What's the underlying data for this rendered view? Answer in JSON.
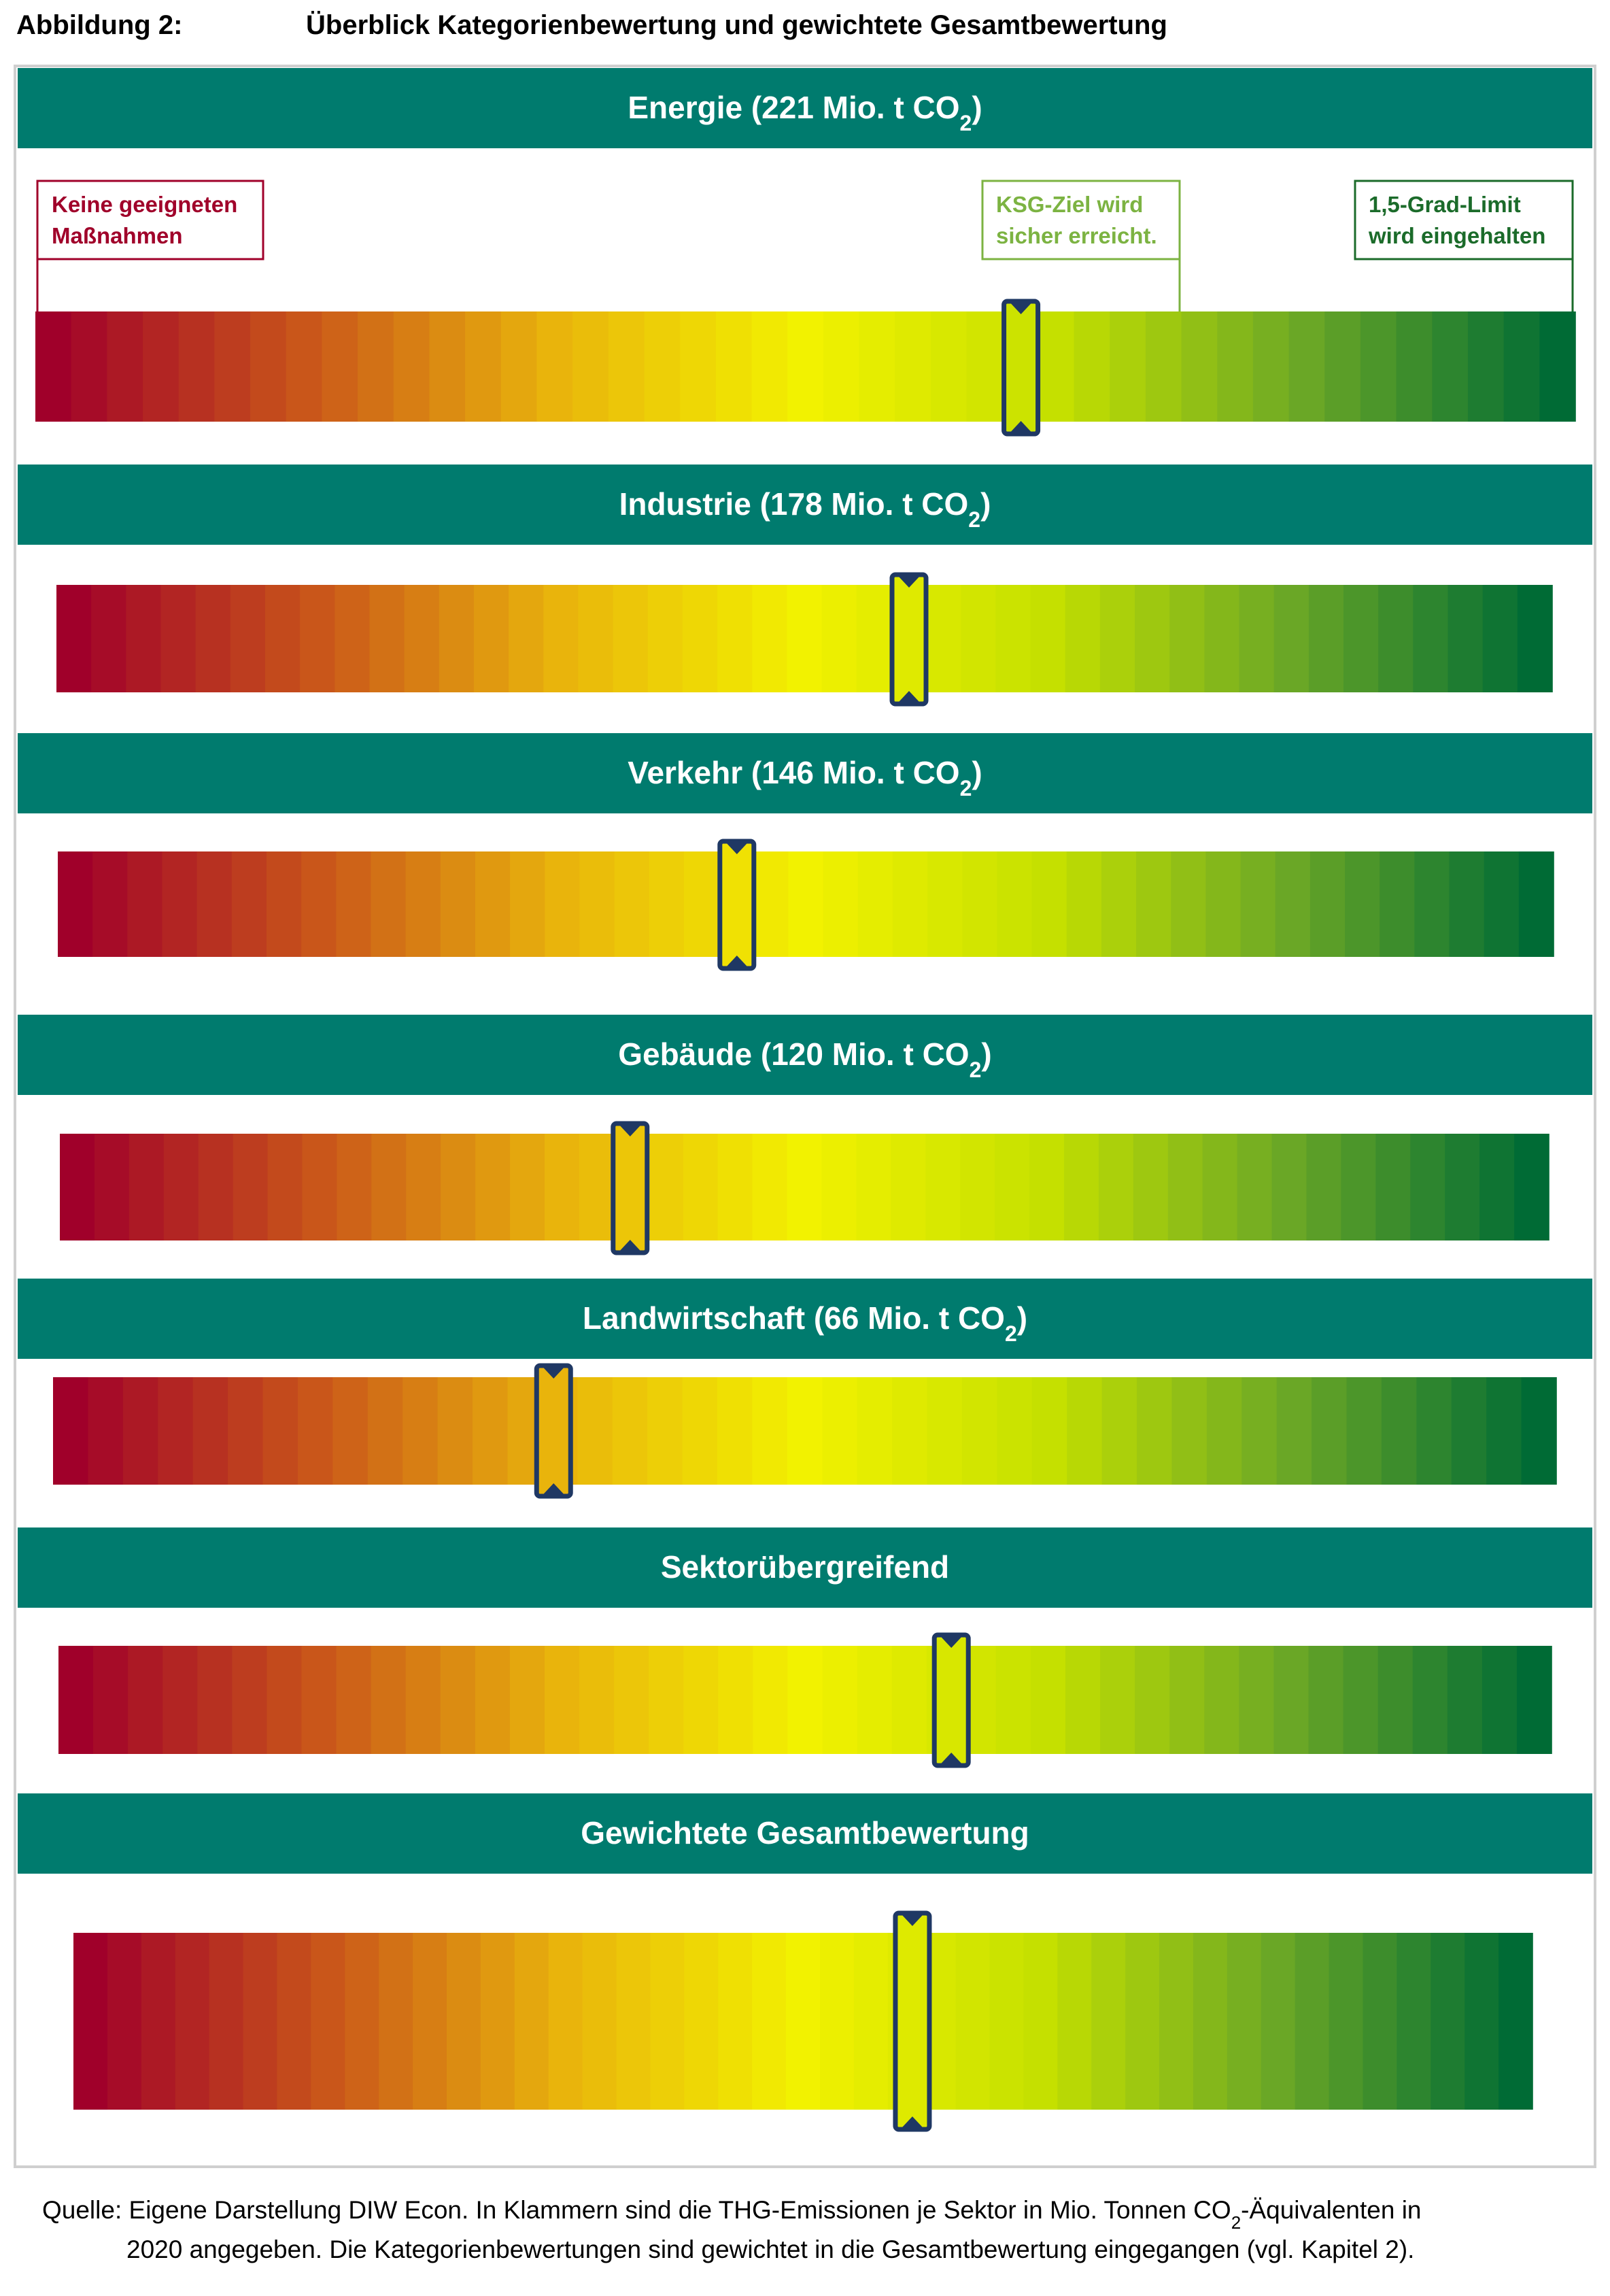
{
  "figure": {
    "label": "Abbildung 2:",
    "title": "Überblick Kategorienbewertung und gewichtete Gesamtbewertung"
  },
  "legend": {
    "low": {
      "line1": "Keine geeigneten",
      "line2": "Maßnahmen",
      "color": "#a0002a"
    },
    "mid": {
      "line1": "KSG-Ziel wird",
      "line2": "sicher erreicht.",
      "color": "#7cb342"
    },
    "high": {
      "line1": "1,5-Grad-Limit",
      "line2": "wird eingehalten",
      "color": "#1b6b2a"
    }
  },
  "colors": {
    "header_band": "#007b6e",
    "marker_stroke": "#1f3864",
    "gradient_stops": [
      "#a0002a",
      "#c9561a",
      "#e9b40c",
      "#f2f200",
      "#c5e000",
      "#6aa726",
      "#006b35"
    ]
  },
  "chart_data": {
    "type": "gauge",
    "scale": [
      0,
      1
    ],
    "scale_note": "0 = Keine geeigneten Maßnahmen, 1 = 1,5-Grad-Limit wird eingehalten",
    "categories": [
      {
        "title": "Energie (221 Mio. t CO",
        "sub": "2",
        "close": ")",
        "value": 0.64
      },
      {
        "title": "Industrie (178 Mio. t CO",
        "sub": "2",
        "close": ")",
        "value": 0.57
      },
      {
        "title": "Verkehr (146 Mio. t CO",
        "sub": "2",
        "close": ")",
        "value": 0.454
      },
      {
        "title": "Gebäude (120 Mio. t CO",
        "sub": "2",
        "close": ")",
        "value": 0.383
      },
      {
        "title": "Landwirtschaft (66 Mio. t CO",
        "sub": "2",
        "close": ")",
        "value": 0.333
      },
      {
        "title": "Sektorübergreifend",
        "sub": "",
        "close": "",
        "value": 0.598
      },
      {
        "title": "Gewichtete Gesamtbewertung",
        "sub": "",
        "close": "",
        "value": 0.575
      }
    ]
  },
  "source": {
    "line1a": "Quelle: Eigene Darstellung DIW Econ. In Klammern sind die THG-Emissionen je Sektor in Mio. Tonnen CO",
    "line1sub": "2",
    "line1b": "-Äquivalenten in",
    "line2": "2020 angegeben. Die Kategorienbewertungen sind gewichtet in die Gesamtbewertung eingegangen (vgl. Kapitel 2)."
  }
}
